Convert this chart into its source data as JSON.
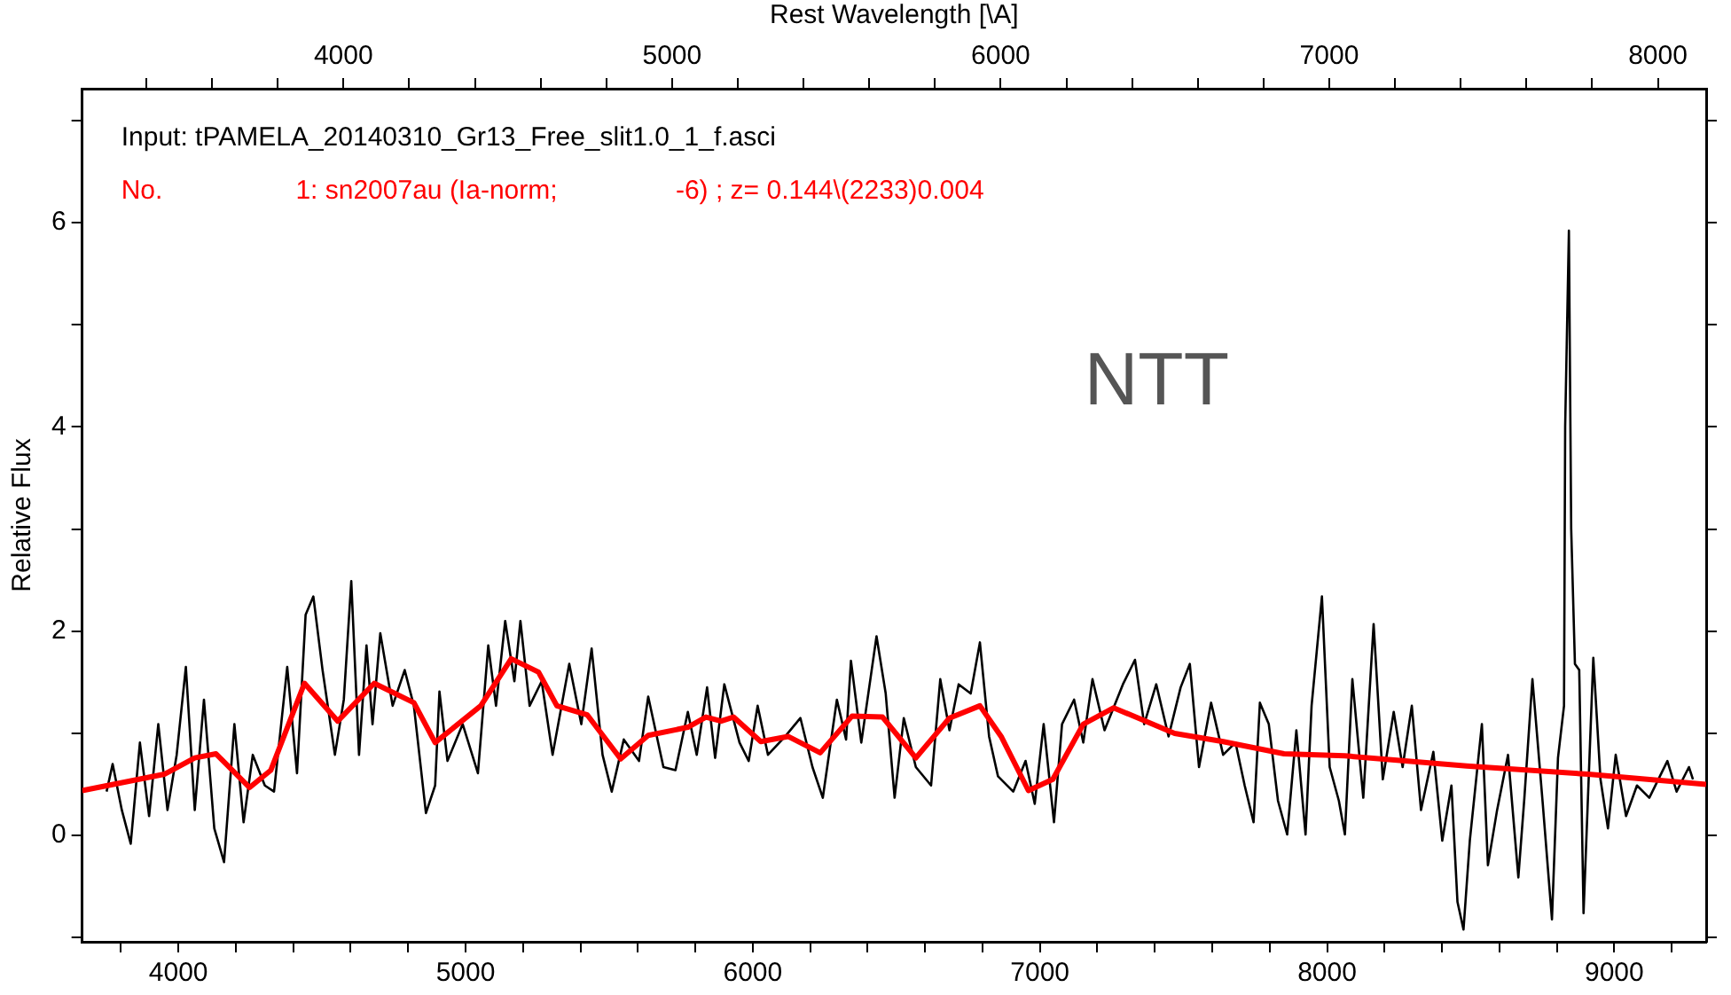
{
  "chart_data": {
    "type": "line",
    "x2label": "Rest Wavelength [\\A]",
    "ylabel": "Relative Flux",
    "annotations": [
      "Input: tPAMELA_20140310_Gr13_Free_slit1.0_1_f.asci",
      "No.                  1: sn2007au (Ia-norm;                -6) ; z= 0.144\\(2233)0.004",
      "NTT"
    ],
    "xlim": [
      3665,
      9320
    ],
    "x2lim": [
      3205,
      8147
    ],
    "ylim": [
      -1.04,
      7.31
    ],
    "xticks": [
      {
        "value": 3800,
        "label": null
      },
      4000,
      {
        "value": 4200,
        "label": null
      },
      {
        "value": 4400,
        "label": null
      },
      {
        "value": 4600,
        "label": null
      },
      {
        "value": 4800,
        "label": null
      },
      5000,
      {
        "value": 5200,
        "label": null
      },
      {
        "value": 5400,
        "label": null
      },
      {
        "value": 5600,
        "label": null
      },
      {
        "value": 5800,
        "label": null
      },
      6000,
      {
        "value": 6200,
        "label": null
      },
      {
        "value": 6400,
        "label": null
      },
      {
        "value": 6600,
        "label": null
      },
      {
        "value": 6800,
        "label": null
      },
      7000,
      {
        "value": 7200,
        "label": null
      },
      {
        "value": 7400,
        "label": null
      },
      {
        "value": 7600,
        "label": null
      },
      {
        "value": 7800,
        "label": null
      },
      8000,
      {
        "value": 8200,
        "label": null
      },
      {
        "value": 8400,
        "label": null
      },
      {
        "value": 8600,
        "label": null
      },
      {
        "value": 8800,
        "label": null
      },
      9000,
      {
        "value": 9200,
        "label": null
      }
    ],
    "x2ticks": [
      {
        "value": 3400,
        "label": null
      },
      {
        "value": 3600,
        "label": null
      },
      {
        "value": 3800,
        "label": null
      },
      4000,
      {
        "value": 4200,
        "label": null
      },
      {
        "value": 4400,
        "label": null
      },
      {
        "value": 4600,
        "label": null
      },
      {
        "value": 4800,
        "label": null
      },
      5000,
      {
        "value": 5200,
        "label": null
      },
      {
        "value": 5400,
        "label": null
      },
      {
        "value": 5600,
        "label": null
      },
      {
        "value": 5800,
        "label": null
      },
      6000,
      {
        "value": 6200,
        "label": null
      },
      {
        "value": 6400,
        "label": null
      },
      {
        "value": 6600,
        "label": null
      },
      {
        "value": 6800,
        "label": null
      },
      7000,
      {
        "value": 7200,
        "label": null
      },
      {
        "value": 7400,
        "label": null
      },
      {
        "value": 7600,
        "label": null
      },
      {
        "value": 7800,
        "label": null
      },
      8000
    ],
    "yticks": [
      {
        "value": -1,
        "label": null
      },
      0,
      {
        "value": 1,
        "label": null
      },
      2,
      {
        "value": 3,
        "label": null
      },
      4,
      {
        "value": 5,
        "label": null
      },
      6,
      {
        "value": 7,
        "label": null
      }
    ],
    "grid": false,
    "legend": false,
    "marker": "none",
    "line_style": "solid",
    "series": [
      {
        "color": "#000000",
        "x": [
          3750,
          3771,
          3803,
          3834,
          3866,
          3898,
          3930,
          3962,
          3994,
          4026,
          4057,
          4089,
          4125,
          4159,
          4195,
          4227,
          4259,
          4301,
          4333,
          4379,
          4413,
          4443,
          4470,
          4502,
          4545,
          4576,
          4602,
          4629,
          4655,
          4676,
          4703,
          4746,
          4788,
          4820,
          4862,
          4894,
          4909,
          4937,
          4990,
          5043,
          5079,
          5106,
          5138,
          5170,
          5191,
          5223,
          5265,
          5303,
          5361,
          5403,
          5439,
          5477,
          5509,
          5551,
          5604,
          5636,
          5689,
          5731,
          5774,
          5805,
          5841,
          5869,
          5901,
          5954,
          5986,
          6017,
          6053,
          6113,
          6166,
          6208,
          6244,
          6293,
          6325,
          6342,
          6378,
          6431,
          6463,
          6494,
          6526,
          6568,
          6621,
          6653,
          6685,
          6717,
          6759,
          6791,
          6823,
          6854,
          6907,
          6950,
          6982,
          7013,
          7049,
          7077,
          7119,
          7151,
          7183,
          7225,
          7289,
          7331,
          7363,
          7405,
          7448,
          7490,
          7522,
          7554,
          7596,
          7638,
          7681,
          7713,
          7744,
          7766,
          7797,
          7829,
          7861,
          7893,
          7925,
          7946,
          7982,
          8009,
          8041,
          8062,
          8088,
          8126,
          8162,
          8194,
          8232,
          8263,
          8295,
          8327,
          8370,
          8401,
          8433,
          8454,
          8475,
          8497,
          8539,
          8560,
          8592,
          8630,
          8666,
          8687,
          8715,
          8751,
          8783,
          8804,
          8825,
          8829,
          8842,
          8850,
          8863,
          8878,
          8893,
          8927,
          8952,
          8978,
          9005,
          9041,
          9079,
          9122,
          9185,
          9217,
          9260,
          9274
        ],
        "values": [
          0.43,
          0.7,
          0.25,
          -0.08,
          0.91,
          0.19,
          1.09,
          0.25,
          0.79,
          1.65,
          0.25,
          1.33,
          0.07,
          -0.26,
          1.09,
          0.13,
          0.79,
          0.49,
          0.43,
          1.65,
          0.61,
          2.16,
          2.34,
          1.62,
          0.79,
          1.33,
          2.49,
          0.79,
          1.86,
          1.09,
          1.98,
          1.27,
          1.62,
          1.27,
          0.22,
          0.49,
          1.41,
          0.73,
          1.09,
          0.61,
          1.86,
          1.27,
          2.1,
          1.51,
          2.1,
          1.27,
          1.51,
          0.79,
          1.68,
          1.09,
          1.83,
          0.79,
          0.43,
          0.94,
          0.73,
          1.36,
          0.67,
          0.64,
          1.21,
          0.79,
          1.45,
          0.76,
          1.48,
          0.91,
          0.73,
          1.27,
          0.79,
          0.97,
          1.15,
          0.67,
          0.37,
          1.33,
          0.94,
          1.71,
          0.91,
          1.95,
          1.39,
          0.37,
          1.15,
          0.67,
          0.49,
          1.53,
          1.03,
          1.48,
          1.39,
          1.89,
          0.97,
          0.58,
          0.43,
          0.73,
          0.31,
          1.09,
          0.13,
          1.09,
          1.33,
          0.91,
          1.53,
          1.03,
          1.48,
          1.72,
          1.09,
          1.48,
          0.97,
          1.45,
          1.68,
          0.67,
          1.3,
          0.79,
          0.91,
          0.49,
          0.13,
          1.3,
          1.09,
          0.34,
          0.01,
          1.03,
          0.01,
          1.27,
          2.34,
          0.67,
          0.34,
          0.01,
          1.53,
          0.37,
          2.07,
          0.55,
          1.21,
          0.67,
          1.27,
          0.25,
          0.82,
          -0.05,
          0.49,
          -0.65,
          -0.92,
          -0.05,
          1.09,
          -0.29,
          0.25,
          0.79,
          -0.41,
          0.37,
          1.53,
          0.31,
          -0.82,
          0.76,
          1.27,
          4.0,
          5.92,
          3.0,
          1.68,
          1.62,
          -0.76,
          1.74,
          0.55,
          0.07,
          0.79,
          0.19,
          0.49,
          0.37,
          0.73,
          0.43,
          0.67,
          0.55
        ]
      },
      {
        "color": "#ff0000",
        "x": [
          3665,
          3951,
          4057,
          4131,
          4248,
          4322,
          4439,
          4555,
          4682,
          4820,
          4894,
          5053,
          5159,
          5254,
          5318,
          5424,
          5540,
          5636,
          5774,
          5837,
          5890,
          5933,
          6028,
          6123,
          6235,
          6346,
          6452,
          6568,
          6685,
          6791,
          6865,
          6960,
          7045,
          7151,
          7257,
          7469,
          7638,
          7850,
          8062,
          8486,
          8910,
          9320
        ],
        "values": [
          0.44,
          0.6,
          0.76,
          0.8,
          0.47,
          0.64,
          1.49,
          1.12,
          1.49,
          1.3,
          0.91,
          1.27,
          1.73,
          1.6,
          1.27,
          1.18,
          0.75,
          0.98,
          1.06,
          1.16,
          1.12,
          1.16,
          0.92,
          0.97,
          0.81,
          1.17,
          1.16,
          0.76,
          1.15,
          1.27,
          0.97,
          0.44,
          0.55,
          1.09,
          1.25,
          1.0,
          0.92,
          0.8,
          0.78,
          0.68,
          0.6,
          0.5
        ]
      }
    ]
  }
}
